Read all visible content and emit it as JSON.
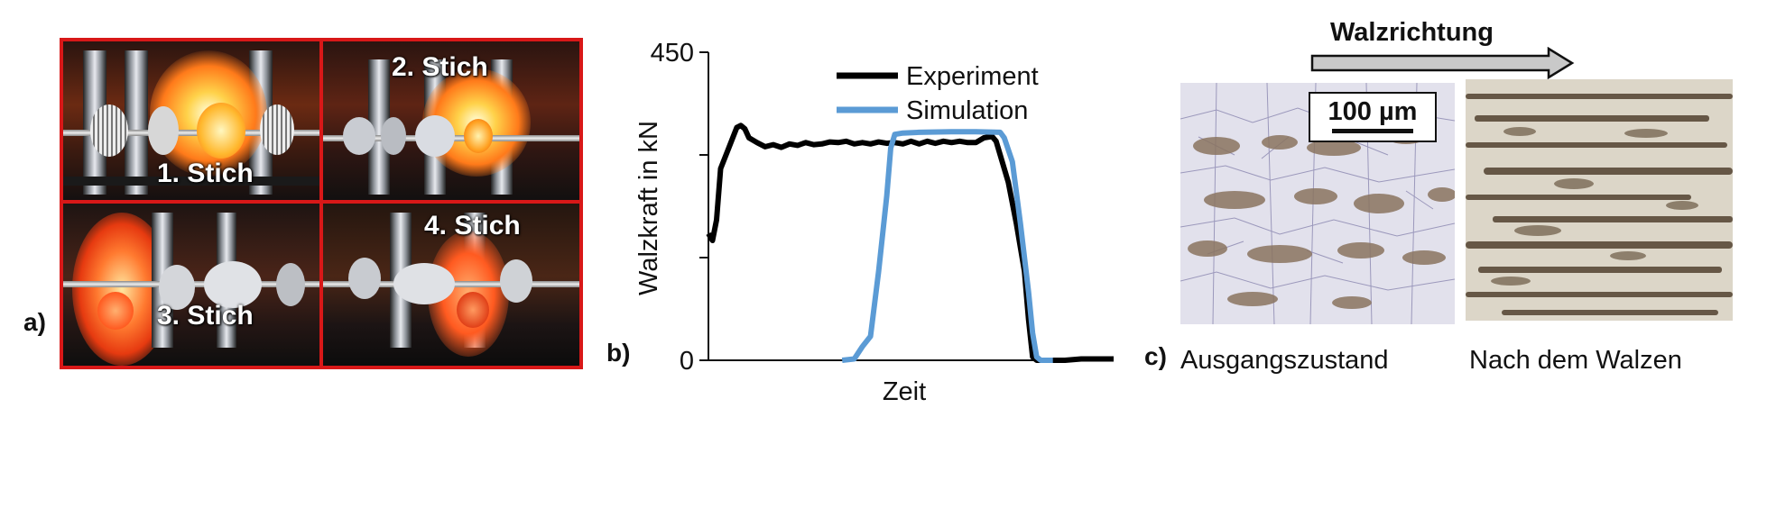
{
  "panel_a": {
    "letter": "a)",
    "labels": [
      "1. Stich",
      "2. Stich",
      "3. Stich",
      "4. Stich"
    ],
    "frame_color": "#d81818"
  },
  "panel_b": {
    "letter": "b)"
  },
  "chart_data": {
    "type": "line",
    "xlabel": "Zeit",
    "ylabel": "Walzkraft in kN",
    "ylim": [
      0,
      450
    ],
    "yticks": [
      0,
      150,
      300,
      450
    ],
    "ytick_labels": [
      "0",
      "",
      "",
      "450"
    ],
    "xlim": [
      0,
      100
    ],
    "legend_placement": "top-right",
    "series": [
      {
        "name": "Experiment",
        "color": "#000000",
        "points": [
          [
            0,
            185
          ],
          [
            1,
            175
          ],
          [
            2,
            205
          ],
          [
            3,
            280
          ],
          [
            5,
            310
          ],
          [
            7,
            340
          ],
          [
            8,
            343
          ],
          [
            9,
            338
          ],
          [
            10,
            325
          ],
          [
            12,
            318
          ],
          [
            14,
            312
          ],
          [
            16,
            315
          ],
          [
            18,
            311
          ],
          [
            20,
            316
          ],
          [
            22,
            314
          ],
          [
            24,
            318
          ],
          [
            26,
            315
          ],
          [
            28,
            316
          ],
          [
            30,
            319
          ],
          [
            32,
            318
          ],
          [
            34,
            320
          ],
          [
            36,
            316
          ],
          [
            38,
            318
          ],
          [
            40,
            316
          ],
          [
            42,
            319
          ],
          [
            44,
            317
          ],
          [
            46,
            318
          ],
          [
            48,
            316
          ],
          [
            50,
            320
          ],
          [
            52,
            316
          ],
          [
            54,
            320
          ],
          [
            56,
            317
          ],
          [
            58,
            320
          ],
          [
            60,
            318
          ],
          [
            62,
            320
          ],
          [
            64,
            318
          ],
          [
            66,
            318
          ],
          [
            68,
            325
          ],
          [
            70,
            327
          ],
          [
            71,
            320
          ],
          [
            72,
            300
          ],
          [
            74,
            260
          ],
          [
            76,
            200
          ],
          [
            78,
            130
          ],
          [
            79,
            60
          ],
          [
            80,
            5
          ],
          [
            81,
            0
          ],
          [
            88,
            0
          ],
          [
            92,
            2
          ],
          [
            96,
            2
          ],
          [
            100,
            2
          ]
        ]
      },
      {
        "name": "Simulation",
        "color": "#5b9bd5",
        "points": [
          [
            33,
            0
          ],
          [
            36,
            2
          ],
          [
            38,
            20
          ],
          [
            40,
            35
          ],
          [
            42,
            130
          ],
          [
            44,
            240
          ],
          [
            45,
            310
          ],
          [
            46,
            330
          ],
          [
            48,
            332
          ],
          [
            52,
            333
          ],
          [
            60,
            334
          ],
          [
            66,
            334
          ],
          [
            72,
            333
          ],
          [
            73,
            325
          ],
          [
            75,
            290
          ],
          [
            77,
            200
          ],
          [
            79,
            100
          ],
          [
            80,
            40
          ],
          [
            81,
            5
          ],
          [
            82,
            0
          ],
          [
            85,
            0
          ]
        ]
      }
    ]
  },
  "panel_c": {
    "letter": "c)",
    "title": "Walzrichtung",
    "scale_bar": "100 µm",
    "caption_left": "Ausgangszustand",
    "caption_right": "Nach dem Walzen"
  }
}
